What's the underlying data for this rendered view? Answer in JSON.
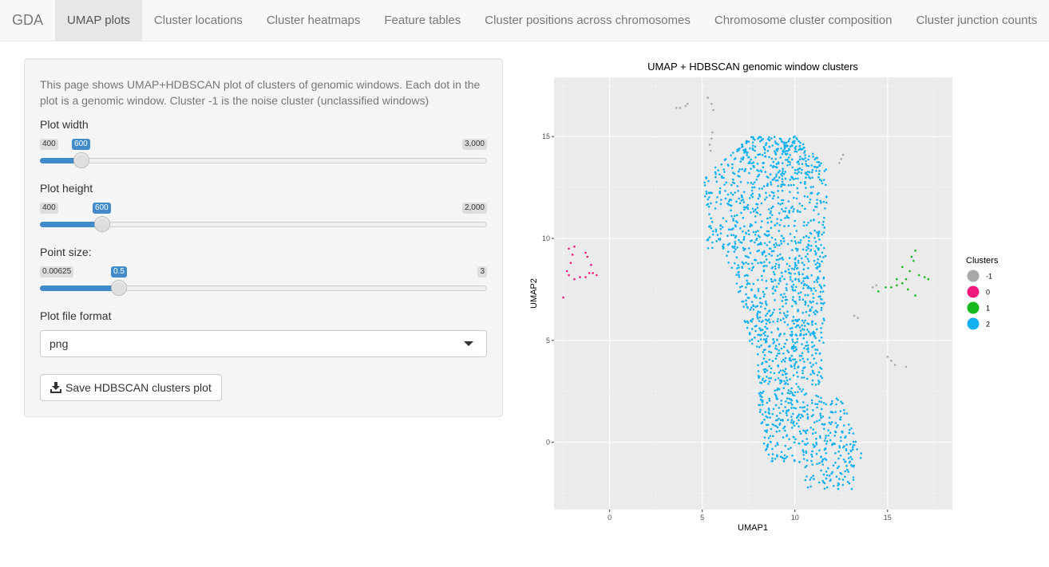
{
  "navbar": {
    "brand": "GDA",
    "tabs": [
      {
        "label": "UMAP plots",
        "active": true
      },
      {
        "label": "Cluster locations",
        "active": false
      },
      {
        "label": "Cluster heatmaps",
        "active": false
      },
      {
        "label": "Feature tables",
        "active": false
      },
      {
        "label": "Cluster positions across chromosomes",
        "active": false
      },
      {
        "label": "Chromosome cluster composition",
        "active": false
      },
      {
        "label": "Cluster junction counts",
        "active": false
      }
    ]
  },
  "sidebar": {
    "description": "This page shows UMAP+HDBSCAN plot of clusters of genomic windows. Each dot in the plot is a genomic window. Cluster -1 is the noise cluster (unclassified windows)",
    "plot_width": {
      "label": "Plot width",
      "min_label": "400",
      "max_label": "3,000",
      "value_label": "600",
      "min": 400,
      "max": 3000,
      "value": 600
    },
    "plot_height": {
      "label": "Plot height",
      "min_label": "400",
      "max_label": "2,000",
      "value_label": "600",
      "min": 400,
      "max": 2000,
      "value": 600
    },
    "point_size": {
      "label": "Point size:",
      "min_label": "0.00625",
      "max_label": "3",
      "value_label": "0.5",
      "min": 0.00625,
      "max": 3,
      "value": 0.5
    },
    "file_format": {
      "label": "Plot file format",
      "selected": "png"
    },
    "save_button": {
      "label": "Save HDBSCAN clusters plot",
      "icon": "download-icon"
    }
  },
  "chart_data": {
    "type": "scatter",
    "title": "UMAP + HDBSCAN genomic window clusters",
    "xlabel": "UMAP1",
    "ylabel": "UMAP2",
    "xlim": [
      -3,
      18.5
    ],
    "ylim": [
      -3.3,
      17.9
    ],
    "xticks": [
      0,
      5,
      10,
      15
    ],
    "yticks": [
      0,
      5,
      10,
      15
    ],
    "grid": true,
    "legend": {
      "title": "Clusters",
      "position": "right"
    },
    "series": [
      {
        "name": "-1",
        "color": "#a8a8a8",
        "points": [
          [
            3.6,
            16.4
          ],
          [
            3.8,
            16.4
          ],
          [
            4.1,
            16.5
          ],
          [
            4.2,
            16.6
          ],
          [
            5.3,
            16.9
          ],
          [
            5.5,
            16.6
          ],
          [
            5.6,
            16.3
          ],
          [
            5.55,
            15.2
          ],
          [
            5.5,
            14.9
          ],
          [
            5.4,
            14.6
          ],
          [
            5.45,
            14.3
          ],
          [
            12.5,
            13.9
          ],
          [
            12.6,
            14.1
          ],
          [
            12.4,
            13.7
          ],
          [
            13.2,
            6.2
          ],
          [
            13.4,
            6.1
          ],
          [
            14.2,
            7.6
          ],
          [
            14.4,
            7.7
          ],
          [
            15.0,
            4.2
          ],
          [
            15.2,
            4.0
          ],
          [
            15.4,
            3.8
          ],
          [
            16.0,
            3.7
          ]
        ]
      },
      {
        "name": "0",
        "color": "#f0197d",
        "points": [
          [
            -2.3,
            8.4
          ],
          [
            -2.1,
            8.8
          ],
          [
            -2.0,
            9.2
          ],
          [
            -2.2,
            9.5
          ],
          [
            -1.9,
            9.6
          ],
          [
            -2.2,
            8.2
          ],
          [
            -1.9,
            8.0
          ],
          [
            -1.6,
            8.1
          ],
          [
            -1.3,
            8.1
          ],
          [
            -1.1,
            8.3
          ],
          [
            -1.0,
            8.7
          ],
          [
            -1.2,
            9.1
          ],
          [
            -1.3,
            9.3
          ],
          [
            -0.9,
            8.3
          ],
          [
            -0.7,
            8.2
          ],
          [
            -2.5,
            7.1
          ]
        ]
      },
      {
        "name": "1",
        "color": "#16b81d",
        "points": [
          [
            14.5,
            7.4
          ],
          [
            14.9,
            7.6
          ],
          [
            15.2,
            7.6
          ],
          [
            15.5,
            7.7
          ],
          [
            15.8,
            7.8
          ],
          [
            16.0,
            8.0
          ],
          [
            16.2,
            8.4
          ],
          [
            16.4,
            8.9
          ],
          [
            16.5,
            9.4
          ],
          [
            16.3,
            9.1
          ],
          [
            16.7,
            8.2
          ],
          [
            17.0,
            8.1
          ],
          [
            17.2,
            8.0
          ],
          [
            16.1,
            7.5
          ],
          [
            16.5,
            7.2
          ],
          [
            15.5,
            8.0
          ],
          [
            15.8,
            8.6
          ]
        ]
      },
      {
        "name": "2",
        "color": "#10b0f2",
        "generated": true
      }
    ]
  }
}
